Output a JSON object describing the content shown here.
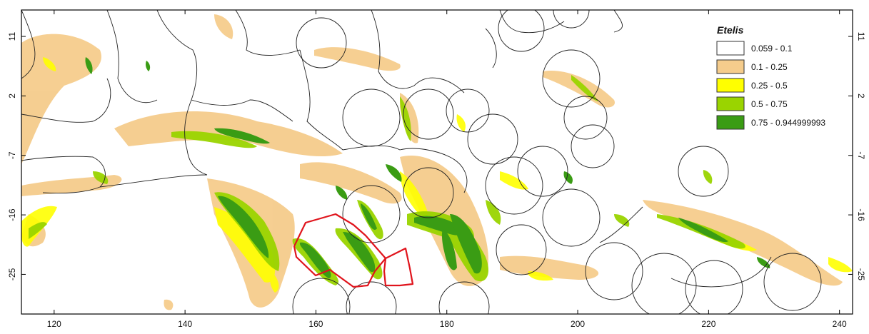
{
  "map": {
    "x_axis": {
      "ticks": [
        120,
        140,
        160,
        180,
        200,
        220,
        240
      ],
      "range": [
        115,
        242
      ]
    },
    "y_axis": {
      "ticks": [
        11,
        2,
        -7,
        -16,
        -25
      ],
      "range": [
        -31,
        15
      ]
    },
    "colors": {
      "frame": "#000000",
      "boundary": "#222222",
      "highlight": "#e0141c",
      "background": "#ffffff"
    }
  },
  "legend": {
    "title": "Etelis",
    "items": [
      {
        "label": "0.059 - 0.1",
        "color": "#ffffff"
      },
      {
        "label": "0.1 - 0.25",
        "color": "#f5cc8c"
      },
      {
        "label": "0.25 - 0.5",
        "color": "#ffff00"
      },
      {
        "label": "0.5 - 0.75",
        "color": "#9ad400"
      },
      {
        "label": "0.75 - 0.944999993",
        "color": "#3a9c14"
      }
    ]
  }
}
